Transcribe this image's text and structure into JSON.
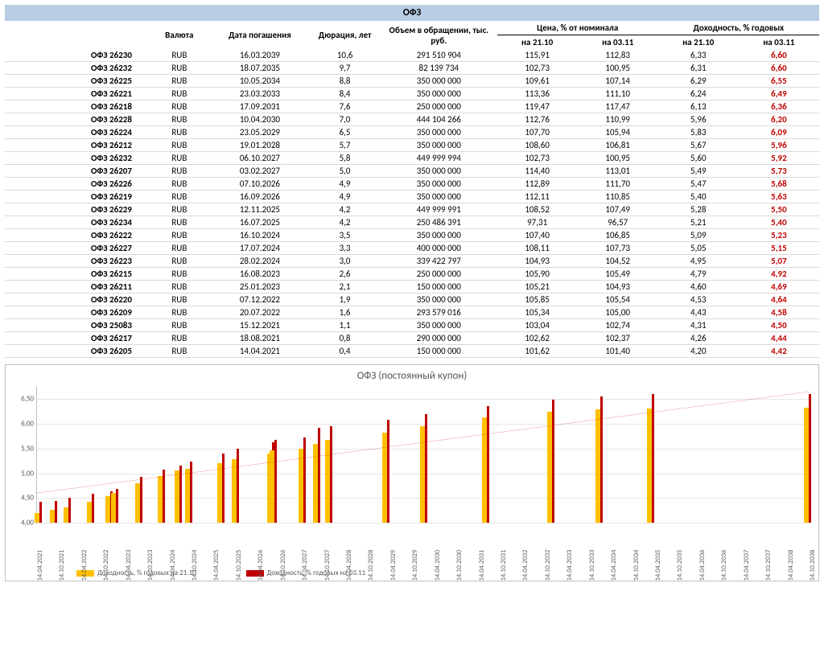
{
  "title": "ОФЗ",
  "headers": {
    "name_spacer": "",
    "currency": "Валюта",
    "maturity": "Дата погашения",
    "duration": "Дюрация, лет",
    "volume": "Объем в обращении, тыс. руб.",
    "price_group": "Цена, % от номинала",
    "yield_group": "Доходность, % годовых",
    "d1": "на 21.10",
    "d2": "на 03.11"
  },
  "colwidths": [
    "16%",
    "7%",
    "11%",
    "8%",
    "13%",
    "9%",
    "9%",
    "9%",
    "9%"
  ],
  "rows": [
    {
      "n": "ОФЗ 26230",
      "c": "RUB",
      "m": "16.03.2039",
      "d": "10,6",
      "v": "291 510 904",
      "p1": "115,91",
      "p2": "112,83",
      "y1": "6,33",
      "y2": "6,60"
    },
    {
      "n": "ОФЗ 26232",
      "c": "RUB",
      "m": "18.07.2035",
      "d": "9,7",
      "v": "82 139 734",
      "p1": "102,73",
      "p2": "100,95",
      "y1": "6,31",
      "y2": "6,60"
    },
    {
      "n": "ОФЗ 26225",
      "c": "RUB",
      "m": "10.05.2034",
      "d": "8,8",
      "v": "350 000 000",
      "p1": "109,61",
      "p2": "107,14",
      "y1": "6,29",
      "y2": "6,55"
    },
    {
      "n": "ОФЗ 26221",
      "c": "RUB",
      "m": "23.03.2033",
      "d": "8,4",
      "v": "350 000 000",
      "p1": "113,36",
      "p2": "111,10",
      "y1": "6,24",
      "y2": "6,49"
    },
    {
      "n": "ОФЗ 26218",
      "c": "RUB",
      "m": "17.09.2031",
      "d": "7,6",
      "v": "250 000 000",
      "p1": "119,47",
      "p2": "117,47",
      "y1": "6,13",
      "y2": "6,36"
    },
    {
      "n": "ОФЗ 26228",
      "c": "RUB",
      "m": "10.04.2030",
      "d": "7,0",
      "v": "444 104 266",
      "p1": "112,76",
      "p2": "110,99",
      "y1": "5,96",
      "y2": "6,20"
    },
    {
      "n": "ОФЗ 26224",
      "c": "RUB",
      "m": "23.05.2029",
      "d": "6,5",
      "v": "350 000 000",
      "p1": "107,70",
      "p2": "105,94",
      "y1": "5,83",
      "y2": "6,09"
    },
    {
      "n": "ОФЗ 26212",
      "c": "RUB",
      "m": "19.01.2028",
      "d": "5,7",
      "v": "350 000 000",
      "p1": "108,60",
      "p2": "106,81",
      "y1": "5,67",
      "y2": "5,96"
    },
    {
      "n": "ОФЗ 26232",
      "c": "RUB",
      "m": "06.10.2027",
      "d": "5,8",
      "v": "449 999 994",
      "p1": "102,73",
      "p2": "100,95",
      "y1": "5,60",
      "y2": "5,92"
    },
    {
      "n": "ОФЗ 26207",
      "c": "RUB",
      "m": "03.02.2027",
      "d": "5,0",
      "v": "350 000 000",
      "p1": "114,40",
      "p2": "113,01",
      "y1": "5,49",
      "y2": "5,73"
    },
    {
      "n": "ОФЗ 26226",
      "c": "RUB",
      "m": "07.10.2026",
      "d": "4,9",
      "v": "350 000 000",
      "p1": "112,89",
      "p2": "111,70",
      "y1": "5,47",
      "y2": "5,68"
    },
    {
      "n": "ОФЗ 26219",
      "c": "RUB",
      "m": "16.09.2026",
      "d": "4,9",
      "v": "350 000 000",
      "p1": "112,11",
      "p2": "110,85",
      "y1": "5,40",
      "y2": "5,63"
    },
    {
      "n": "ОФЗ 26229",
      "c": "RUB",
      "m": "12.11.2025",
      "d": "4,2",
      "v": "449 999 991",
      "p1": "108,52",
      "p2": "107,49",
      "y1": "5,28",
      "y2": "5,50"
    },
    {
      "n": "ОФЗ 26234",
      "c": "RUB",
      "m": "16.07.2025",
      "d": "4,2",
      "v": "250 486 391",
      "p1": "97,31",
      "p2": "96,57",
      "y1": "5,21",
      "y2": "5,40"
    },
    {
      "n": "ОФЗ 26222",
      "c": "RUB",
      "m": "16.10.2024",
      "d": "3,5",
      "v": "350 000 000",
      "p1": "107,40",
      "p2": "106,85",
      "y1": "5,09",
      "y2": "5,23"
    },
    {
      "n": "ОФЗ 26227",
      "c": "RUB",
      "m": "17.07.2024",
      "d": "3,3",
      "v": "400 000 000",
      "p1": "108,11",
      "p2": "107,73",
      "y1": "5,05",
      "y2": "5,15"
    },
    {
      "n": "ОФЗ 26223",
      "c": "RUB",
      "m": "28.02.2024",
      "d": "3,0",
      "v": "339 422 797",
      "p1": "104,93",
      "p2": "104,52",
      "y1": "4,95",
      "y2": "5,07"
    },
    {
      "n": "ОФЗ 26215",
      "c": "RUB",
      "m": "16.08.2023",
      "d": "2,6",
      "v": "250 000 000",
      "p1": "105,90",
      "p2": "105,49",
      "y1": "4,79",
      "y2": "4,92"
    },
    {
      "n": "ОФЗ 26211",
      "c": "RUB",
      "m": "25.01.2023",
      "d": "2,1",
      "v": "150 000 000",
      "p1": "105,21",
      "p2": "104,93",
      "y1": "4,60",
      "y2": "4,69"
    },
    {
      "n": "ОФЗ 26220",
      "c": "RUB",
      "m": "07.12.2022",
      "d": "1,9",
      "v": "350 000 000",
      "p1": "105,85",
      "p2": "105,54",
      "y1": "4,53",
      "y2": "4,64"
    },
    {
      "n": "ОФЗ 26209",
      "c": "RUB",
      "m": "20.07.2022",
      "d": "1,6",
      "v": "293 579 016",
      "p1": "105,34",
      "p2": "105,00",
      "y1": "4,43",
      "y2": "4,58"
    },
    {
      "n": "ОФЗ 25083",
      "c": "RUB",
      "m": "15.12.2021",
      "d": "1,1",
      "v": "350 000 000",
      "p1": "103,04",
      "p2": "102,74",
      "y1": "4,31",
      "y2": "4,50"
    },
    {
      "n": "ОФЗ 26217",
      "c": "RUB",
      "m": "18.08.2021",
      "d": "0,8",
      "v": "290 000 000",
      "p1": "102,62",
      "p2": "102,37",
      "y1": "4,26",
      "y2": "4,44"
    },
    {
      "n": "ОФЗ 26205",
      "c": "RUB",
      "m": "14.04.2021",
      "d": "0,4",
      "v": "150 000 000",
      "p1": "101,62",
      "p2": "101,40",
      "y1": "4,20",
      "y2": "4,42"
    }
  ],
  "chart": {
    "title": "ОФЗ (постоянный купон)",
    "ymin": 4.0,
    "ymax": 6.75,
    "yticks": [
      4.0,
      4.5,
      5.0,
      5.5,
      6.0,
      6.5
    ],
    "ytick_labels": [
      "4,00",
      "4,50",
      "5,00",
      "5,50",
      "6,00",
      "6,50"
    ],
    "series1_color": "#ffc000",
    "series2_color": "#c00000",
    "grid_color": "#e6e6e6",
    "trend_color": "#c00000",
    "legend1": "Доходность, % годовых на 21.10",
    "legend2": "Доходность, % годовых на 03.11",
    "xlabels": [
      "14.04.2021",
      "14.10.2021",
      "14.04.2022",
      "14.10.2022",
      "14.04.2023",
      "14.10.2023",
      "14.04.2024",
      "14.10.2024",
      "14.04.2025",
      "14.10.2025",
      "14.04.2026",
      "14.10.2026",
      "14.04.2027",
      "14.10.2027",
      "14.04.2028",
      "14.10.2028",
      "14.04.2029",
      "14.10.2029",
      "14.04.2030",
      "14.10.2030",
      "14.04.2031",
      "14.10.2031",
      "14.04.2032",
      "14.10.2032",
      "14.04.2033",
      "14.10.2033",
      "14.04.2034",
      "14.10.2034",
      "14.04.2035",
      "14.10.2035",
      "14.04.2036",
      "14.10.2036",
      "14.04.2037",
      "14.10.2037",
      "14.04.2038",
      "14.10.2038"
    ],
    "points": [
      {
        "x": 0.0,
        "y1": 4.2,
        "y2": 4.42
      },
      {
        "x": 0.7,
        "y1": 4.26,
        "y2": 4.44
      },
      {
        "x": 1.34,
        "y1": 4.31,
        "y2": 4.5
      },
      {
        "x": 2.44,
        "y1": 4.43,
        "y2": 4.58
      },
      {
        "x": 3.32,
        "y1": 4.53,
        "y2": 4.64
      },
      {
        "x": 3.56,
        "y1": 4.6,
        "y2": 4.69
      },
      {
        "x": 4.68,
        "y1": 4.79,
        "y2": 4.92
      },
      {
        "x": 5.74,
        "y1": 4.95,
        "y2": 5.07
      },
      {
        "x": 6.52,
        "y1": 5.05,
        "y2": 5.15
      },
      {
        "x": 7.02,
        "y1": 5.09,
        "y2": 5.23
      },
      {
        "x": 8.52,
        "y1": 5.21,
        "y2": 5.4
      },
      {
        "x": 9.18,
        "y1": 5.28,
        "y2": 5.5
      },
      {
        "x": 10.86,
        "y1": 5.4,
        "y2": 5.63
      },
      {
        "x": 10.98,
        "y1": 5.47,
        "y2": 5.68
      },
      {
        "x": 12.3,
        "y1": 5.49,
        "y2": 5.73
      },
      {
        "x": 12.98,
        "y1": 5.6,
        "y2": 5.92
      },
      {
        "x": 13.56,
        "y1": 5.67,
        "y2": 5.96
      },
      {
        "x": 16.22,
        "y1": 5.83,
        "y2": 6.09
      },
      {
        "x": 17.98,
        "y1": 5.96,
        "y2": 6.2
      },
      {
        "x": 20.88,
        "y1": 6.13,
        "y2": 6.36
      },
      {
        "x": 23.9,
        "y1": 6.24,
        "y2": 6.49
      },
      {
        "x": 26.16,
        "y1": 6.29,
        "y2": 6.55
      },
      {
        "x": 28.56,
        "y1": 6.31,
        "y2": 6.6
      },
      {
        "x": 35.88,
        "y1": 6.33,
        "y2": 6.6
      }
    ],
    "xmax": 36
  }
}
